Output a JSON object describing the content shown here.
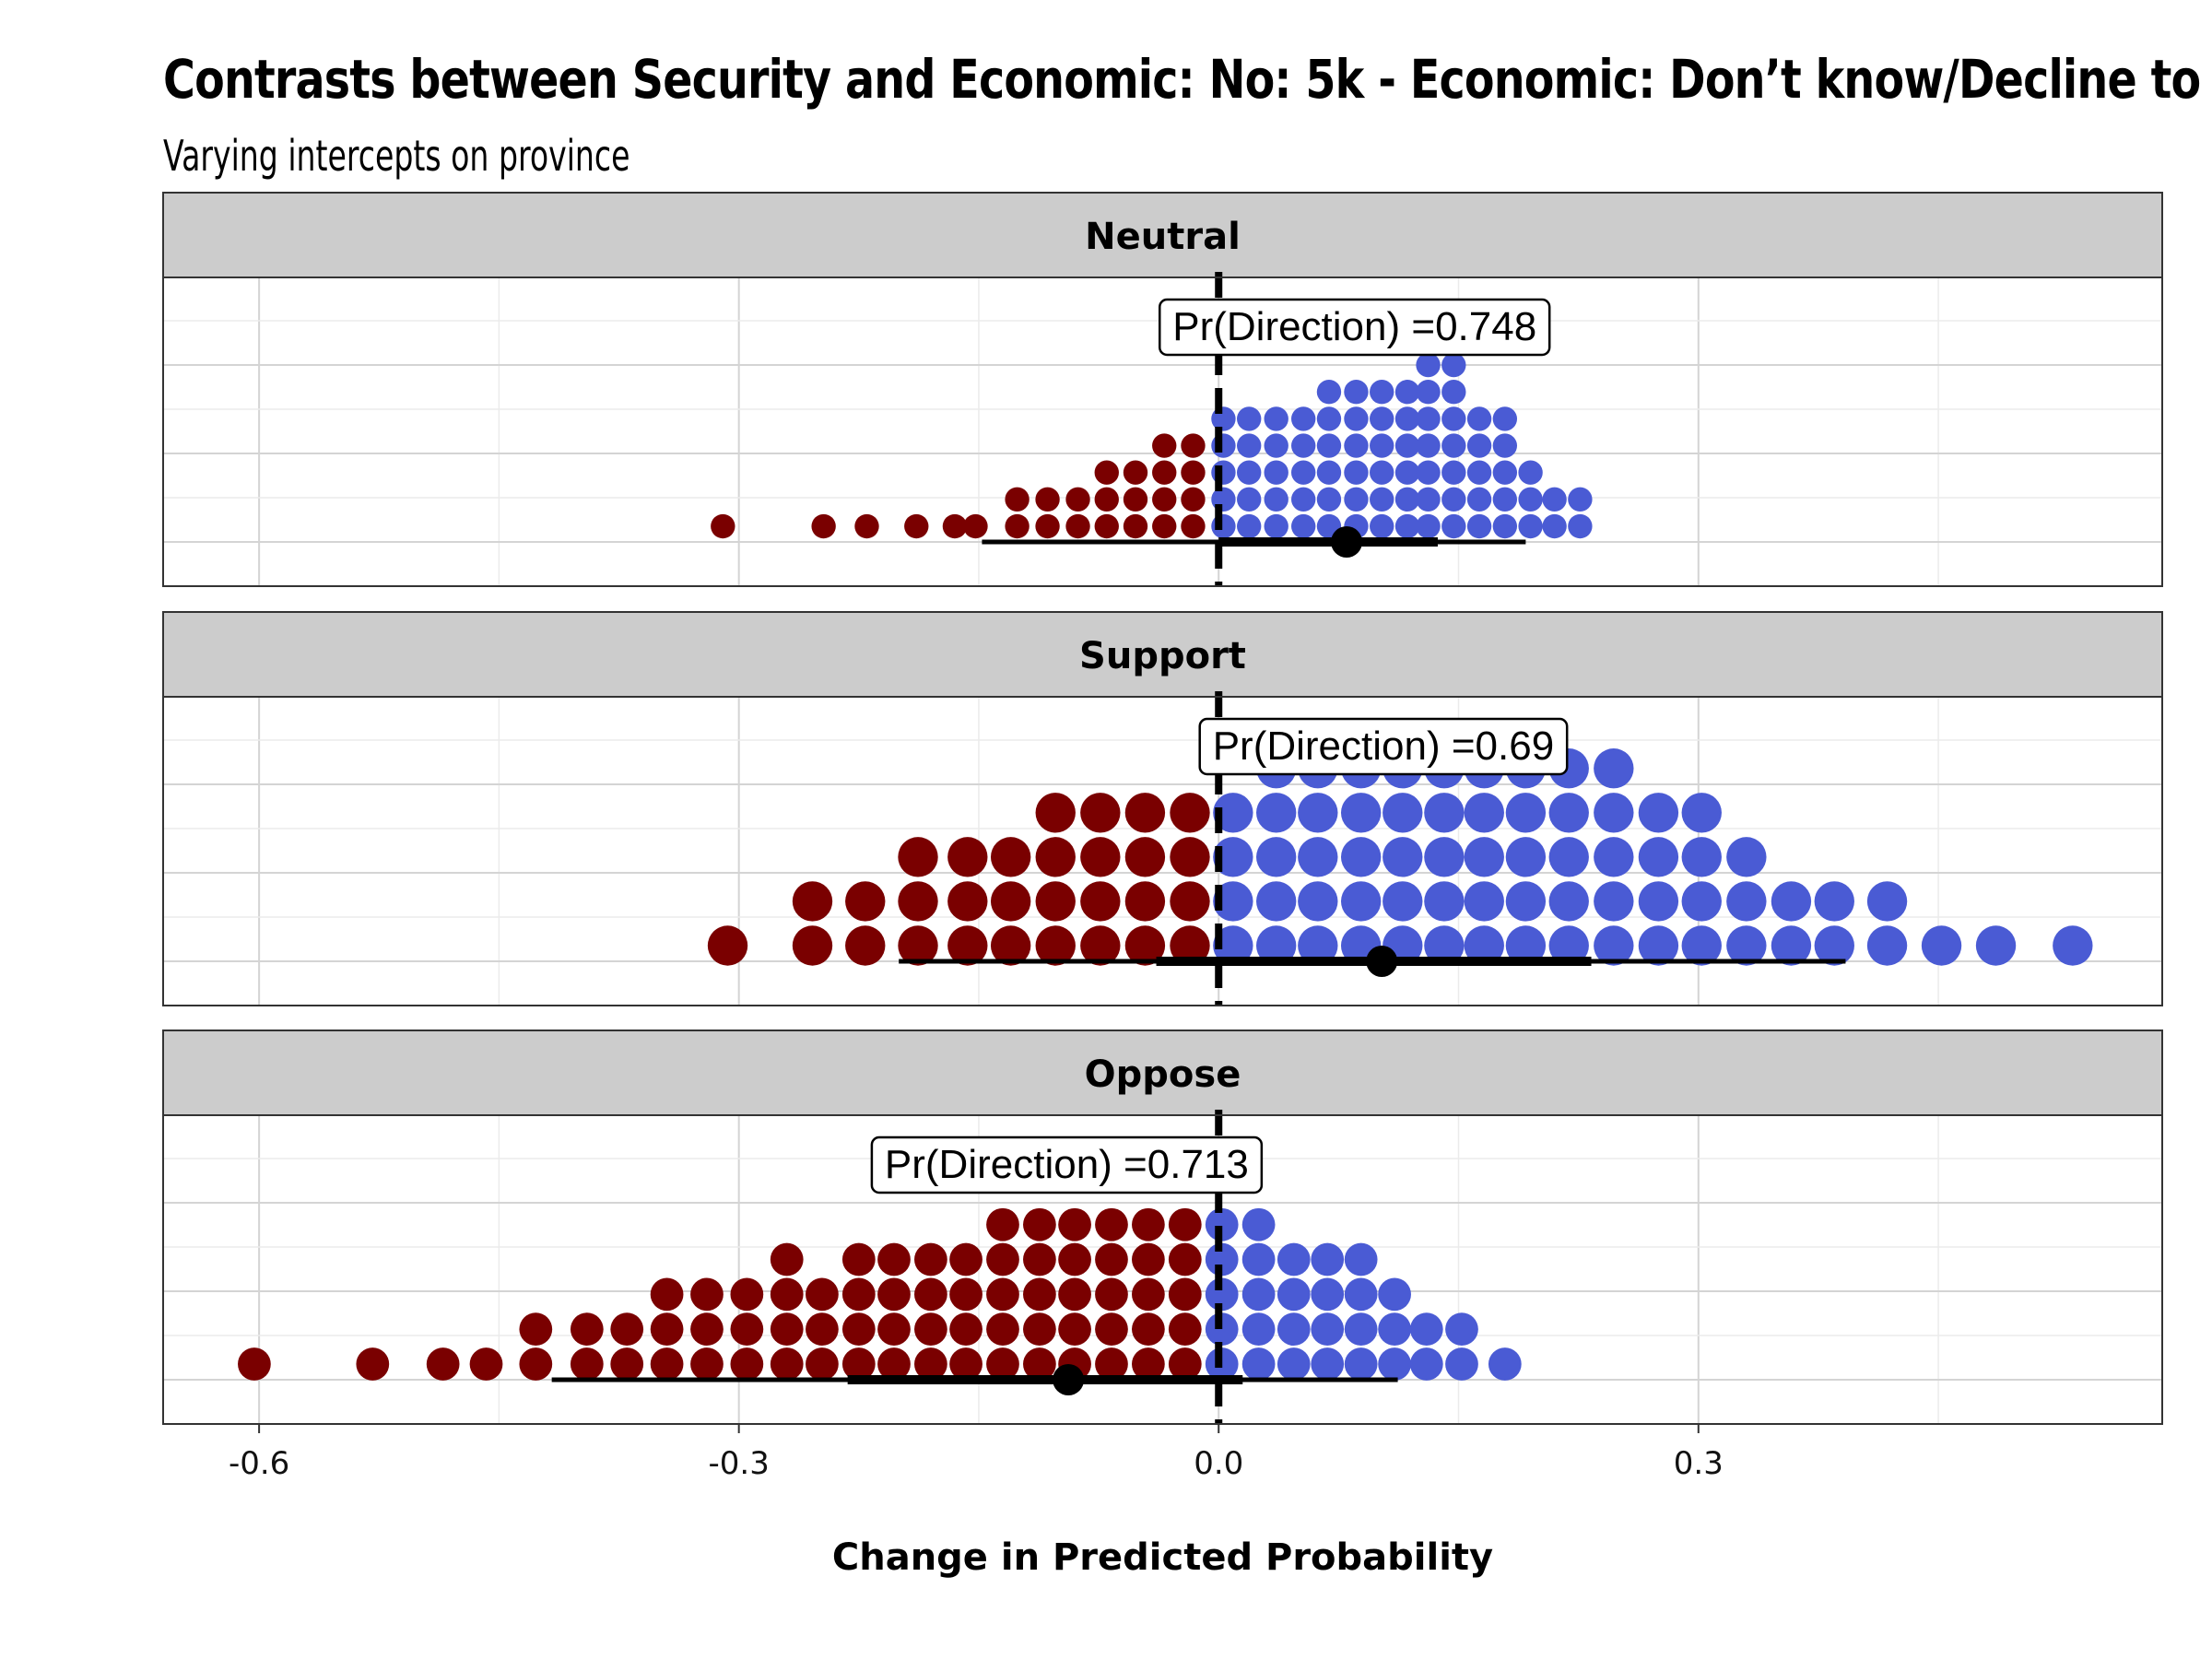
{
  "chart_data": {
    "type": "dotplot",
    "title": "Contrasts between Security and Economic: No: 5k - Economic: Don’t know/Decline to",
    "subtitle": "Varying intercepts on province",
    "xlabel": "Change in Predicted Probability",
    "xticks": [
      "-0.6",
      "-0.3",
      "0.0",
      "0.3"
    ],
    "xtick_values": [
      -0.6,
      -0.3,
      0.0,
      0.3
    ],
    "xlim": [
      -0.66,
      0.59
    ],
    "reference_line": 0.0,
    "colors": {
      "negative": "#7a0000",
      "positive": "#4a5bd4",
      "strip": "#cccccc"
    },
    "panels": [
      {
        "label": "Neutral",
        "pr_direction": "Pr(Direction) =0.748",
        "label_x": 0.085,
        "median": 0.08,
        "interval_66": [
          0.0,
          0.137
        ],
        "interval_95": [
          -0.148,
          0.192
        ],
        "dot_radius": 0.0076,
        "dot_spacing": 0.0168,
        "dots": [
          {
            "x": -0.31,
            "n": 1
          },
          {
            "x": -0.247,
            "n": 1
          },
          {
            "x": -0.22,
            "n": 1
          },
          {
            "x": -0.189,
            "n": 1
          },
          {
            "x": -0.165,
            "n": 1
          },
          {
            "x": -0.152,
            "n": 1
          },
          {
            "x": -0.126,
            "n": 2
          },
          {
            "x": -0.107,
            "n": 2
          },
          {
            "x": -0.088,
            "n": 2
          },
          {
            "x": -0.07,
            "n": 3
          },
          {
            "x": -0.052,
            "n": 3
          },
          {
            "x": -0.034,
            "n": 4
          },
          {
            "x": -0.016,
            "n": 4
          },
          {
            "x": 0.003,
            "n": 5
          },
          {
            "x": 0.019,
            "n": 5
          },
          {
            "x": 0.036,
            "n": 5
          },
          {
            "x": 0.053,
            "n": 5
          },
          {
            "x": 0.069,
            "n": 6
          },
          {
            "x": 0.086,
            "n": 6
          },
          {
            "x": 0.102,
            "n": 6
          },
          {
            "x": 0.118,
            "n": 6
          },
          {
            "x": 0.131,
            "n": 8
          },
          {
            "x": 0.147,
            "n": 7
          },
          {
            "x": 0.163,
            "n": 5
          },
          {
            "x": 0.179,
            "n": 5
          },
          {
            "x": 0.195,
            "n": 3
          },
          {
            "x": 0.21,
            "n": 2
          },
          {
            "x": 0.226,
            "n": 2
          }
        ]
      },
      {
        "label": "Support",
        "pr_direction": "Pr(Direction) =0.69",
        "label_x": 0.103,
        "median": 0.102,
        "interval_66": [
          -0.039,
          0.233
        ],
        "interval_95": [
          -0.2,
          0.392
        ],
        "dot_radius": 0.0125,
        "dot_spacing": 0.0277,
        "dots": [
          {
            "x": -0.307,
            "n": 1
          },
          {
            "x": -0.254,
            "n": 2
          },
          {
            "x": -0.221,
            "n": 2
          },
          {
            "x": -0.188,
            "n": 3
          },
          {
            "x": -0.157,
            "n": 3
          },
          {
            "x": -0.13,
            "n": 3
          },
          {
            "x": -0.102,
            "n": 4
          },
          {
            "x": -0.074,
            "n": 4
          },
          {
            "x": -0.046,
            "n": 4
          },
          {
            "x": -0.018,
            "n": 4
          },
          {
            "x": 0.009,
            "n": 4
          },
          {
            "x": 0.036,
            "n": 5
          },
          {
            "x": 0.062,
            "n": 5
          },
          {
            "x": 0.089,
            "n": 5
          },
          {
            "x": 0.115,
            "n": 5
          },
          {
            "x": 0.141,
            "n": 5
          },
          {
            "x": 0.166,
            "n": 5
          },
          {
            "x": 0.192,
            "n": 5
          },
          {
            "x": 0.219,
            "n": 5
          },
          {
            "x": 0.247,
            "n": 5
          },
          {
            "x": 0.275,
            "n": 4
          },
          {
            "x": 0.302,
            "n": 4
          },
          {
            "x": 0.33,
            "n": 3
          },
          {
            "x": 0.358,
            "n": 2
          },
          {
            "x": 0.385,
            "n": 2
          },
          {
            "x": 0.418,
            "n": 2
          },
          {
            "x": 0.452,
            "n": 1
          },
          {
            "x": 0.486,
            "n": 1
          },
          {
            "x": 0.534,
            "n": 1
          }
        ]
      },
      {
        "label": "Oppose",
        "pr_direction": "Pr(Direction) =0.713",
        "label_x": -0.095,
        "median": -0.094,
        "interval_66": [
          -0.232,
          0.015
        ],
        "interval_95": [
          -0.417,
          0.112
        ],
        "dot_radius": 0.0103,
        "dot_spacing": 0.0218,
        "dots": [
          {
            "x": -0.603,
            "n": 1
          },
          {
            "x": -0.529,
            "n": 1
          },
          {
            "x": -0.485,
            "n": 1
          },
          {
            "x": -0.458,
            "n": 1
          },
          {
            "x": -0.427,
            "n": 2
          },
          {
            "x": -0.395,
            "n": 2
          },
          {
            "x": -0.37,
            "n": 2
          },
          {
            "x": -0.345,
            "n": 3
          },
          {
            "x": -0.32,
            "n": 3
          },
          {
            "x": -0.295,
            "n": 3
          },
          {
            "x": -0.27,
            "n": 4
          },
          {
            "x": -0.248,
            "n": 3
          },
          {
            "x": -0.225,
            "n": 4
          },
          {
            "x": -0.203,
            "n": 4
          },
          {
            "x": -0.18,
            "n": 4
          },
          {
            "x": -0.158,
            "n": 4
          },
          {
            "x": -0.135,
            "n": 5
          },
          {
            "x": -0.112,
            "n": 5
          },
          {
            "x": -0.09,
            "n": 5
          },
          {
            "x": -0.067,
            "n": 5
          },
          {
            "x": -0.044,
            "n": 5
          },
          {
            "x": -0.021,
            "n": 5
          },
          {
            "x": 0.002,
            "n": 5
          },
          {
            "x": 0.025,
            "n": 5
          },
          {
            "x": 0.047,
            "n": 4
          },
          {
            "x": 0.068,
            "n": 4
          },
          {
            "x": 0.089,
            "n": 4
          },
          {
            "x": 0.11,
            "n": 3
          },
          {
            "x": 0.13,
            "n": 2
          },
          {
            "x": 0.152,
            "n": 2
          },
          {
            "x": 0.179,
            "n": 1
          }
        ]
      }
    ]
  }
}
